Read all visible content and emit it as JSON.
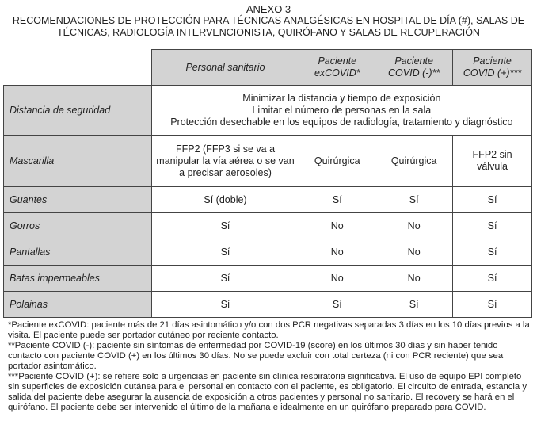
{
  "title": "ANEXO 3",
  "subtitle": "RECOMENDACIONES DE PROTECCIÓN PARA TÉCNICAS ANALGÉSICAS EN HOSPITAL DE DÍA (#), SALAS DE TÉCNICAS, RADIOLOGÍA INTERVENCIONISTA, QUIRÓFANO Y SALAS DE RECUPERACIÓN",
  "headers": [
    "Personal sanitario",
    "Paciente exCOVID*",
    "Paciente COVID (-)**",
    "Paciente COVID (+)***"
  ],
  "distancia": {
    "label": "Distancia de seguridad",
    "lines": [
      "Minimizar la distancia y tiempo de exposición",
      "Limitar el número de personas en la sala",
      "Protección desechable en los equipos de radiología, tratamiento y diagnóstico"
    ]
  },
  "rows": [
    {
      "label": "Mascarilla",
      "cells": [
        "FFP2 (FFP3 si se va a manipular la vía aérea o se van a precisar aerosoles)",
        "Quirúrgica",
        "Quirúrgica",
        "FFP2 sin válvula"
      ]
    },
    {
      "label": "Guantes",
      "cells": [
        "Sí (doble)",
        "Sí",
        "Sí",
        "Sí"
      ]
    },
    {
      "label": "Gorros",
      "cells": [
        "Sí",
        "No",
        "No",
        "Sí"
      ]
    },
    {
      "label": "Pantallas",
      "cells": [
        "Sí",
        "No",
        "No",
        "Sí"
      ]
    },
    {
      "label": "Batas impermeables",
      "cells": [
        "Sí",
        "No",
        "No",
        "Sí"
      ]
    },
    {
      "label": "Polainas",
      "cells": [
        "Sí",
        "Sí",
        "Sí",
        "Sí"
      ]
    }
  ],
  "notes": [
    "*Paciente exCOVID: paciente más de 21 días asintomático y/o con dos PCR negativas separadas 3 días en los 10 días previos a la visita. El paciente puede ser portador cutáneo por reciente contacto.",
    "**Paciente COVID (-): paciente sin síntomas de enfermedad por COVID-19 (score) en los últimos 30 días y sin haber tenido contacto con paciente COVID (+) en los últimos 30 días. No se puede excluir con total certeza (ni con PCR reciente) que sea portador asintomático.",
    "***Paciente COVID (+): se refiere solo a urgencias en paciente sin clínica respiratoria significativa. El uso de equipo EPI completo sin superficies de exposición cutánea para el personal en contacto con el paciente, es obligatorio. El circuito de entrada, estancia y salida del paciente debe asegurar la ausencia de exposición a otros pacientes y personal no sanitario. El recovery se hará en el quirófano. El paciente debe ser intervenido el último de la mañana e idealmente en un quirófano preparado para COVID."
  ]
}
